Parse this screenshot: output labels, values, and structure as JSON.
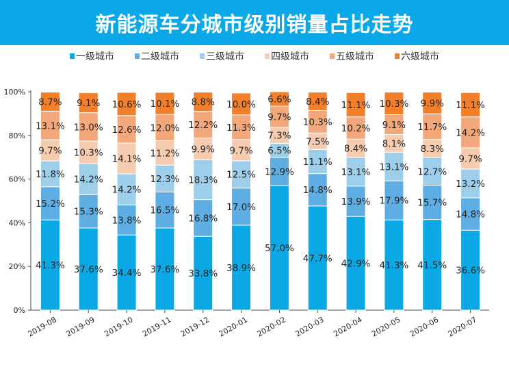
{
  "chart_data": {
    "type": "bar",
    "stacked": true,
    "title": "新能源车分城市级别销量占比走势",
    "categories": [
      "2019-08",
      "2019-09",
      "2019-10",
      "2019-11",
      "2019-12",
      "2020-01",
      "2020-02",
      "2020-03",
      "2020-04",
      "2020-05",
      "2020-06",
      "2020-07"
    ],
    "series": [
      {
        "name": "一级城市",
        "color": "#0aa9e6",
        "values": [
          41.3,
          37.6,
          34.4,
          37.6,
          33.8,
          38.9,
          57.0,
          47.7,
          42.9,
          41.3,
          41.5,
          36.6
        ]
      },
      {
        "name": "二级城市",
        "color": "#5eaee3",
        "values": [
          15.2,
          15.3,
          13.8,
          16.5,
          16.8,
          17.0,
          12.9,
          14.8,
          13.9,
          17.9,
          15.7,
          14.8
        ]
      },
      {
        "name": "三级城市",
        "color": "#9dcfea",
        "values": [
          11.8,
          14.2,
          14.2,
          12.3,
          18.3,
          12.5,
          6.5,
          11.1,
          13.1,
          13.1,
          12.7,
          13.2
        ]
      },
      {
        "name": "四级城市",
        "color": "#f6ccb0",
        "values": [
          9.7,
          10.3,
          14.1,
          11.2,
          9.9,
          9.7,
          7.3,
          7.5,
          8.4,
          8.1,
          8.3,
          9.7
        ]
      },
      {
        "name": "五级城市",
        "color": "#f3a87c",
        "values": [
          13.1,
          13.0,
          12.6,
          12.0,
          12.2,
          11.3,
          9.7,
          10.3,
          10.2,
          9.1,
          11.7,
          14.2
        ]
      },
      {
        "name": "六级城市",
        "color": "#f47f2a",
        "values": [
          8.7,
          9.1,
          10.6,
          10.1,
          8.8,
          10.0,
          6.6,
          8.4,
          11.1,
          10.3,
          9.9,
          11.1
        ]
      }
    ],
    "yticks": [
      "0%",
      "20%",
      "40%",
      "60%",
      "80%",
      "100%"
    ],
    "ylim": [
      0,
      100
    ],
    "legend": "top",
    "grid": false
  }
}
